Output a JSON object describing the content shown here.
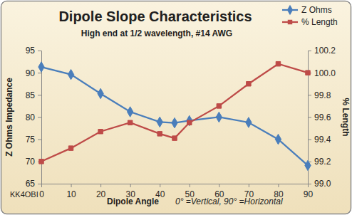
{
  "chart_data": {
    "type": "line",
    "title": "Dipole Slope Characteristics",
    "subtitle": "High end at 1/2 wavelength, #14 AWG",
    "x_label": "Dipole Angle",
    "y_label": "Z Ohms Impedance",
    "y2_label": "% Length",
    "annotations": [
      "0° =Vertical, 90° =Horizontal",
      "KK4OBI"
    ],
    "x": [
      0,
      10,
      20,
      30,
      40,
      45,
      50,
      60,
      70,
      80,
      90
    ],
    "xlim": [
      0,
      90
    ],
    "xticks": [
      0,
      10,
      20,
      30,
      40,
      50,
      60,
      70,
      80,
      90
    ],
    "ylim": [
      65,
      95
    ],
    "yticks": [
      65,
      70,
      75,
      80,
      85,
      90,
      95
    ],
    "y2lim": [
      99,
      100.2
    ],
    "y2ticks": [
      {
        "value": 99,
        "label": "99.0"
      },
      99.2,
      99.4,
      99.6,
      99.8,
      {
        "value": 100,
        "label": "100.0"
      },
      100.2
    ],
    "grid": false,
    "legend": "top-right",
    "series": [
      {
        "name": "Z Ohms",
        "color": "#4a7ebb",
        "marker": "diamond",
        "line_style": "solid",
        "values": [
          91.3,
          89.6,
          85.3,
          81.2,
          78.9,
          78.7,
          79.2,
          80.0,
          78.8,
          75.0,
          69.1
        ]
      },
      {
        "name": "% Length",
        "color": "#be4b48",
        "marker": "square",
        "line_style": "solid",
        "axis": "y2",
        "values": [
          99.2,
          99.32,
          99.47,
          99.55,
          99.45,
          99.41,
          99.55,
          99.7,
          99.9,
          100.08,
          100.0
        ]
      }
    ]
  }
}
